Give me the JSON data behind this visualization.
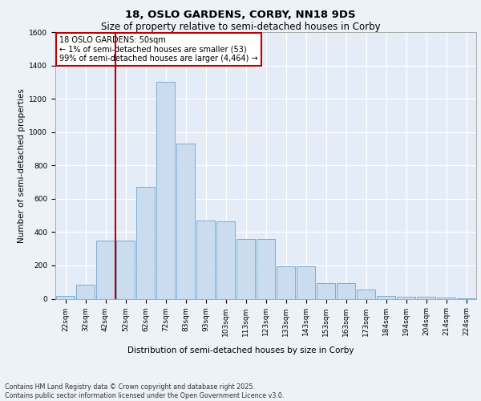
{
  "title1": "18, OSLO GARDENS, CORBY, NN18 9DS",
  "title2": "Size of property relative to semi-detached houses in Corby",
  "xlabel": "Distribution of semi-detached houses by size in Corby",
  "ylabel": "Number of semi-detached properties",
  "footer1": "Contains HM Land Registry data © Crown copyright and database right 2025.",
  "footer2": "Contains public sector information licensed under the Open Government Licence v3.0.",
  "annotation_title": "18 OSLO GARDENS: 50sqm",
  "annotation_line1": "← 1% of semi-detached houses are smaller (53)",
  "annotation_line2": "99% of semi-detached houses are larger (4,464) →",
  "bar_categories": [
    "22sqm",
    "32sqm",
    "42sqm",
    "52sqm",
    "62sqm",
    "72sqm",
    "83sqm",
    "93sqm",
    "103sqm",
    "113sqm",
    "123sqm",
    "133sqm",
    "143sqm",
    "153sqm",
    "163sqm",
    "173sqm",
    "184sqm",
    "194sqm",
    "204sqm",
    "214sqm",
    "224sqm"
  ],
  "bar_values": [
    15,
    85,
    350,
    350,
    670,
    1300,
    930,
    470,
    465,
    360,
    360,
    195,
    195,
    95,
    95,
    55,
    15,
    10,
    10,
    8,
    3
  ],
  "bar_color": "#ccdcef",
  "bar_edge_color": "#7baed4",
  "vline_color": "#bb0000",
  "vline_bin_index": 3,
  "ylim": [
    0,
    1600
  ],
  "yticks": [
    0,
    200,
    400,
    600,
    800,
    1000,
    1200,
    1400,
    1600
  ],
  "background_color": "#edf2f9",
  "plot_background": "#e4ecf7",
  "grid_color": "#ffffff",
  "annotation_box_facecolor": "#ffffff",
  "annotation_border_color": "#bb0000",
  "title_fontsize": 9.5,
  "subtitle_fontsize": 8.5,
  "annotation_fontsize": 7.0,
  "tick_fontsize": 6.5,
  "axis_label_fontsize": 7.5,
  "footer_fontsize": 5.8,
  "ylabel_fontsize": 7.5
}
